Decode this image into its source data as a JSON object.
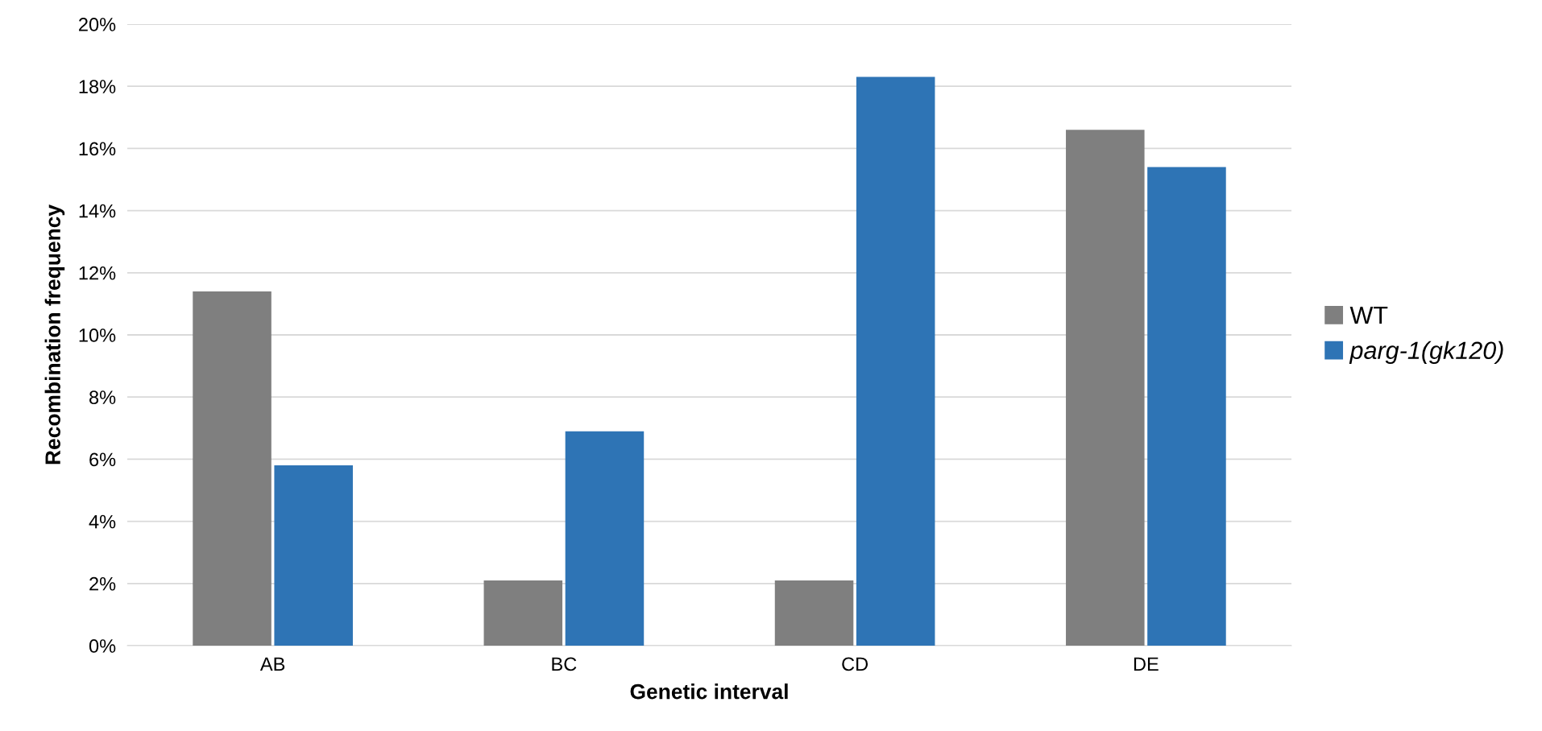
{
  "chart_data": {
    "type": "bar",
    "xlabel": "Genetic interval",
    "ylabel": "Recombination frequency",
    "categories": [
      "AB",
      "BC",
      "CD",
      "DE"
    ],
    "series": [
      {
        "name": "WT",
        "color": "#7f7f7f",
        "values": [
          11.4,
          2.1,
          2.1,
          16.6
        ]
      },
      {
        "name": "parg-1(gk120)",
        "color": "#2e74b5",
        "values": [
          5.8,
          6.9,
          18.3,
          15.4
        ]
      }
    ],
    "ylim": [
      0,
      20
    ],
    "yticks": [
      {
        "value": 0,
        "label": "0%"
      },
      {
        "value": 2,
        "label": "2%"
      },
      {
        "value": 4,
        "label": "4%"
      },
      {
        "value": 6,
        "label": "6%"
      },
      {
        "value": 8,
        "label": "8%"
      },
      {
        "value": 10,
        "label": "10%"
      },
      {
        "value": 12,
        "label": "12%"
      },
      {
        "value": 14,
        "label": "14%"
      },
      {
        "value": 16,
        "label": "16%"
      },
      {
        "value": 18,
        "label": "18%"
      },
      {
        "value": 20,
        "label": "20%"
      }
    ],
    "grid": "y",
    "legend": "right"
  }
}
